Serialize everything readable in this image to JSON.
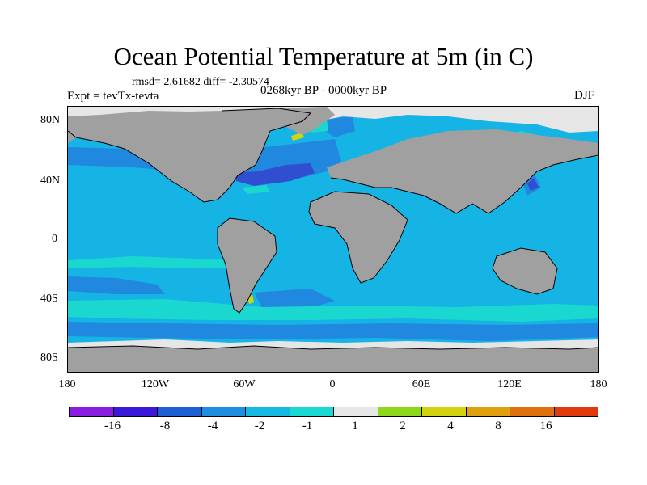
{
  "title": "Ocean Potential Temperature at 5m (in C)",
  "stats": "rmsd= 2.61682 diff= -2.30574",
  "experiment": "Expt = tevTx-tevta",
  "period": "0268kyr BP - 0000kyr BP",
  "season": "DJF",
  "y_ticks": [
    "80N",
    "40N",
    "0",
    "40S",
    "80S"
  ],
  "x_ticks": [
    "180",
    "120W",
    "60W",
    "0",
    "60E",
    "120E",
    "180"
  ],
  "colorbar": {
    "colors": [
      "#8a1ee0",
      "#3a1ad8",
      "#1d5fd4",
      "#1e8fe0",
      "#16b9e2",
      "#1ad8d2",
      "#e6e6e6",
      "#8ed81a",
      "#d2d20e",
      "#e0a00e",
      "#e06f0e",
      "#e03a0e"
    ],
    "labels": [
      "-16",
      "-8",
      "-4",
      "-2",
      "-1",
      "1",
      "2",
      "4",
      "8",
      "16"
    ]
  },
  "map_colors": {
    "ocean": "#15b4e4",
    "land": "#a0a0a0",
    "ice": "#e6e6e6",
    "dark_blue": "#2f4ed0",
    "mid_blue": "#2188e0",
    "cyan": "#1ad8d0",
    "yellow": "#d4d40e"
  }
}
